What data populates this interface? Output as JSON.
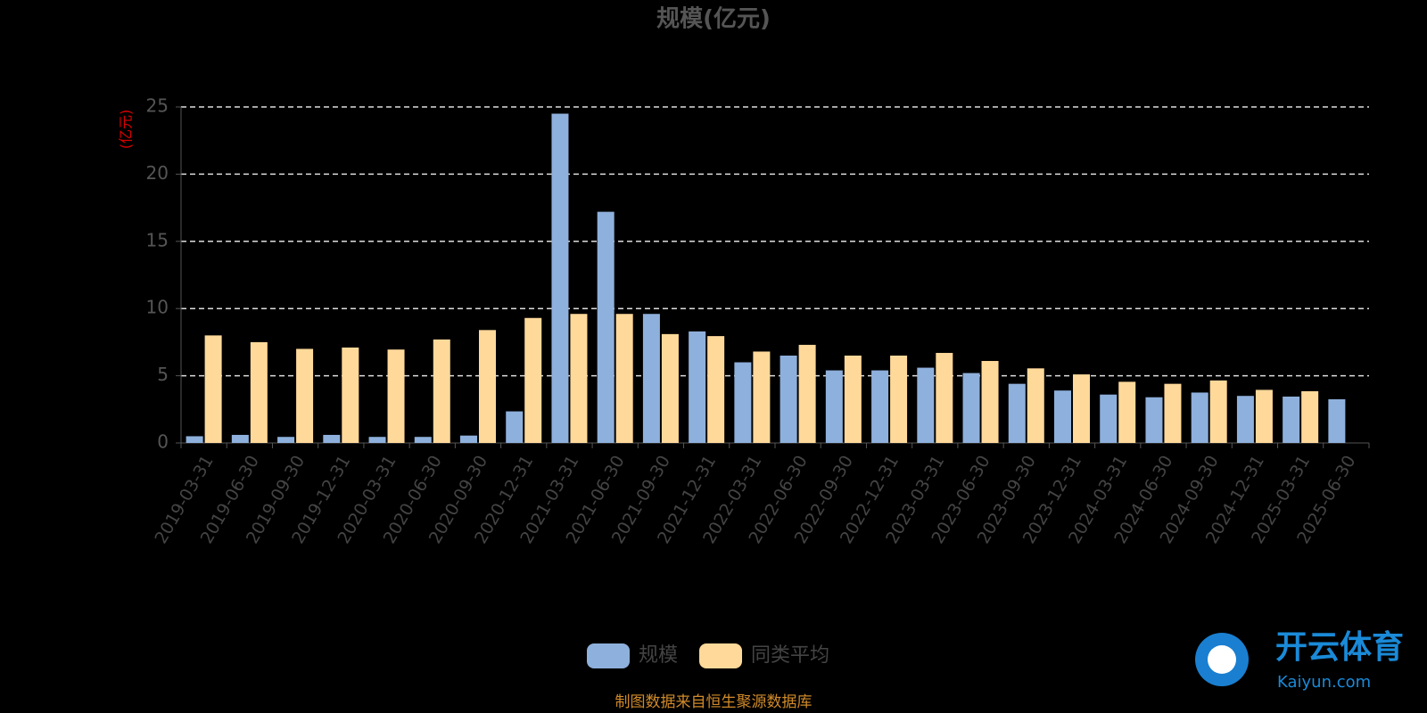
{
  "chart_data": {
    "type": "bar",
    "title": "规模(亿元)",
    "y_label": "(亿元)",
    "categories": [
      "2019-03-31",
      "2019-06-30",
      "2019-09-30",
      "2019-12-31",
      "2020-03-31",
      "2020-06-30",
      "2020-09-30",
      "2020-12-31",
      "2021-03-31",
      "2021-06-30",
      "2021-09-30",
      "2021-12-31",
      "2022-03-31",
      "2022-06-30",
      "2022-09-30",
      "2022-12-31",
      "2023-03-31",
      "2023-06-30",
      "2023-09-30",
      "2023-12-31",
      "2024-03-31",
      "2024-06-30",
      "2024-09-30",
      "2024-12-31",
      "2025-03-31",
      "2025-06-30"
    ],
    "series": [
      {
        "name": "规模",
        "color": "#8eb0dc",
        "values": [
          0.5,
          0.6,
          0.45,
          0.6,
          0.45,
          0.45,
          0.55,
          2.35,
          24.5,
          17.2,
          9.6,
          8.3,
          6.0,
          6.5,
          5.4,
          5.4,
          5.6,
          5.2,
          4.4,
          3.9,
          3.6,
          3.4,
          3.75,
          3.5,
          3.45,
          3.25
        ]
      },
      {
        "name": "同类平均",
        "color": "#ffd99a",
        "values": [
          8.0,
          7.5,
          7.0,
          7.1,
          6.95,
          7.7,
          8.4,
          9.3,
          9.6,
          9.6,
          8.1,
          7.95,
          6.8,
          7.3,
          6.5,
          6.5,
          6.7,
          6.1,
          5.55,
          5.1,
          4.55,
          4.4,
          4.65,
          3.95,
          3.85,
          null
        ]
      }
    ],
    "ylim": [
      0,
      25
    ],
    "yticks": [
      0,
      5,
      10,
      15,
      20,
      25
    ],
    "grid": true,
    "source": "制图数据来自恒生聚源数据库",
    "watermark": {
      "brand": "开云体育",
      "url": "Kaiyun.com"
    }
  }
}
